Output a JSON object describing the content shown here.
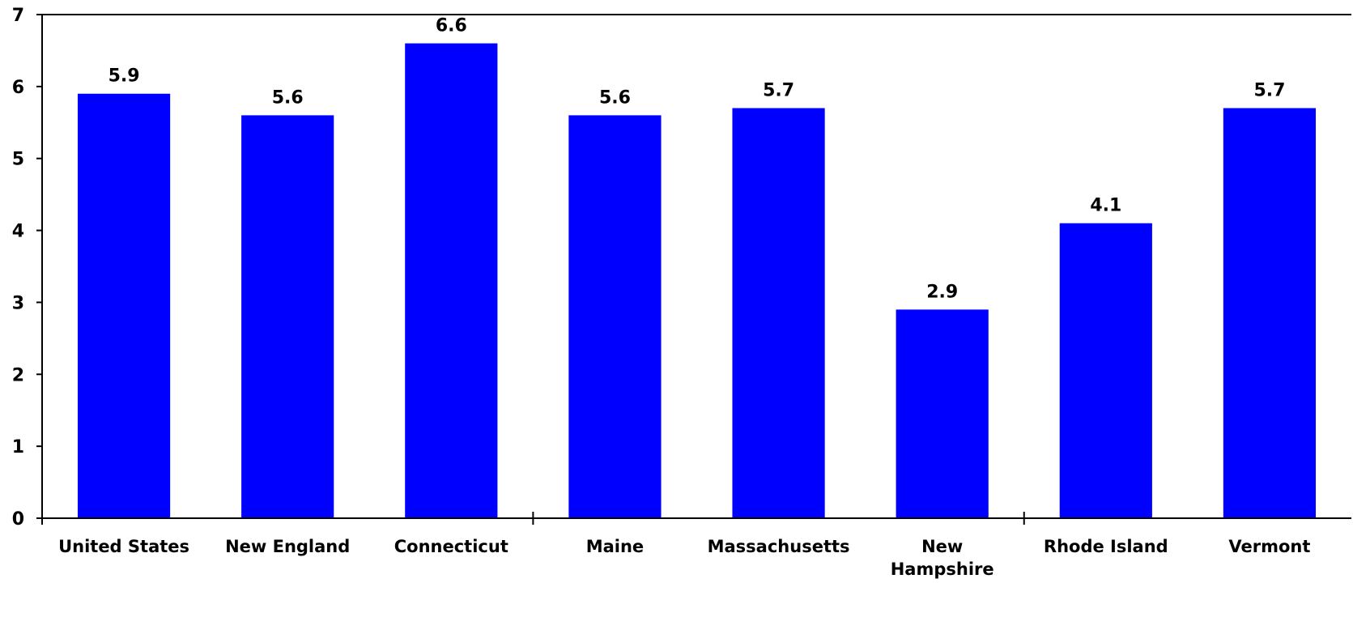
{
  "chart_data": {
    "type": "bar",
    "categories": [
      "United States",
      "New England",
      "Connecticut",
      "Maine",
      "Massachusetts",
      "New Hampshire",
      "Rhode Island",
      "Vermont"
    ],
    "category_lines": [
      [
        "United States"
      ],
      [
        "New England"
      ],
      [
        "Connecticut"
      ],
      [
        "Maine"
      ],
      [
        "Massachusetts"
      ],
      [
        "New",
        "Hampshire"
      ],
      [
        "Rhode Island"
      ],
      [
        "Vermont"
      ]
    ],
    "values": [
      5.9,
      5.6,
      6.6,
      5.6,
      5.7,
      2.9,
      4.1,
      5.7
    ],
    "data_labels": [
      "5.9",
      "5.6",
      "6.6",
      "5.6",
      "5.7",
      "2.9",
      "4.1",
      "5.7"
    ],
    "title": "",
    "xlabel": "",
    "ylabel": "",
    "ylim": [
      0,
      7
    ],
    "yticks": [
      "0",
      "1",
      "2",
      "3",
      "4",
      "5",
      "6",
      "7"
    ],
    "grid": false,
    "legend": "none",
    "bar_color": "#0000FF",
    "axis_color": "#000000"
  }
}
